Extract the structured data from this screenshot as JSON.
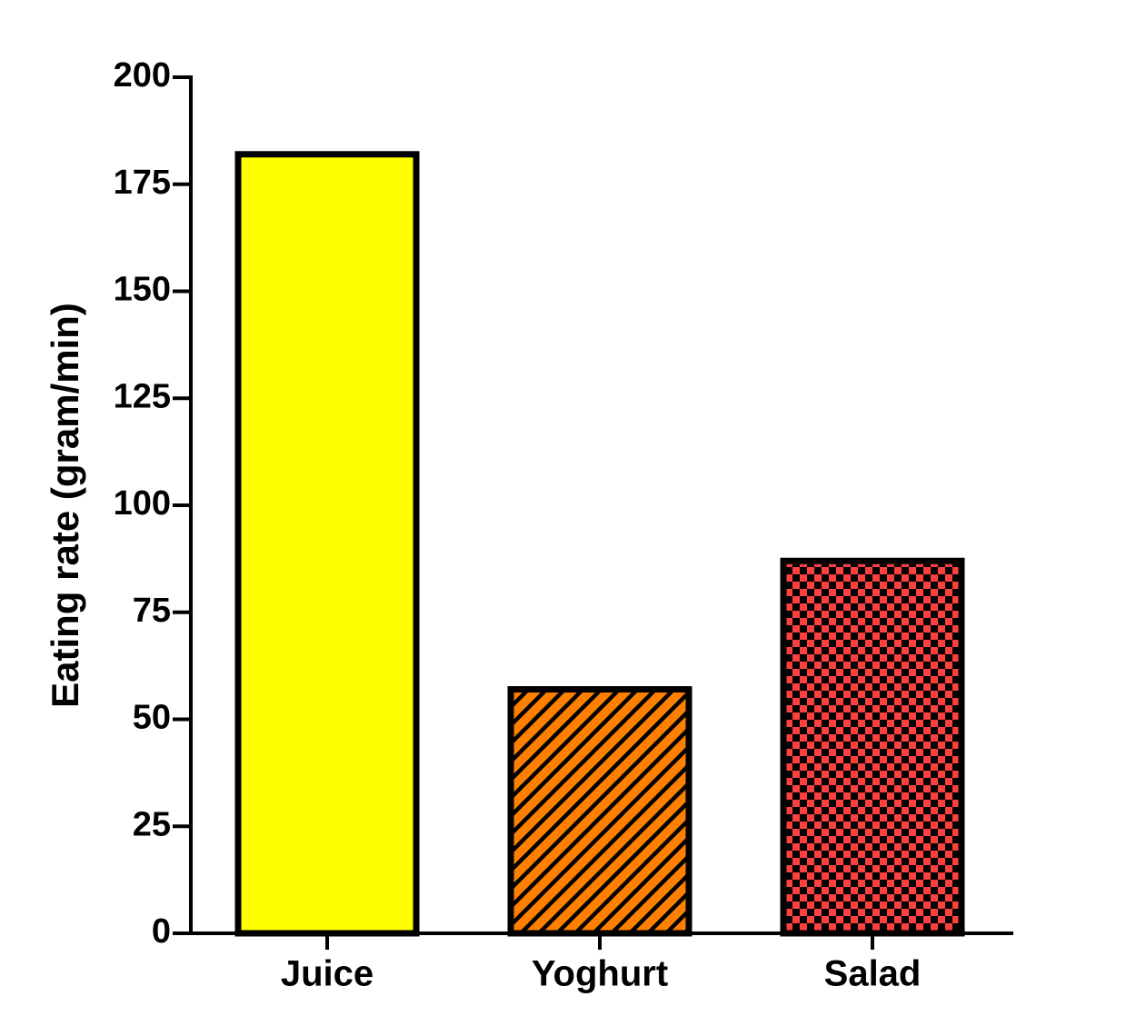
{
  "chart_data": {
    "type": "bar",
    "y_label": "Eating rate (gram/min)",
    "categories": [
      "Juice",
      "Yoghurt",
      "Salad"
    ],
    "values": [
      182,
      57,
      87
    ],
    "colors": [
      "#ffff00",
      "#ff8000",
      "#ff4040"
    ],
    "patterns": [
      "solid",
      "hatch",
      "checker"
    ],
    "ylim": [
      0,
      200
    ],
    "yticks": [
      0,
      25,
      50,
      75,
      100,
      125,
      150,
      175,
      200
    ],
    "grid": false
  }
}
